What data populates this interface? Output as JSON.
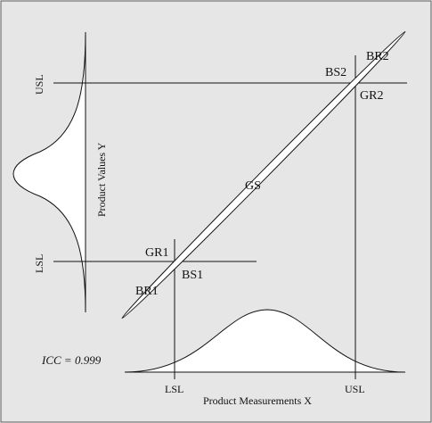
{
  "diagram": {
    "colors": {
      "background": "#e6e6e6",
      "border": "#555555",
      "line": "#111111",
      "curve_fill": "#ffffff"
    },
    "labels": {
      "usl_y": "USL",
      "lsl_y": "LSL",
      "product_values_y": "Product Values Y",
      "lsl_x": "LSL",
      "usl_x": "USL",
      "product_measurements_x": "Product Measurements X",
      "icc": "ICC = 0.999",
      "gs": "GS",
      "gr1": "GR1",
      "bs1": "BS1",
      "br1": "BR1",
      "bs2": "BS2",
      "br2": "BR2",
      "gr2": "GR2"
    }
  }
}
